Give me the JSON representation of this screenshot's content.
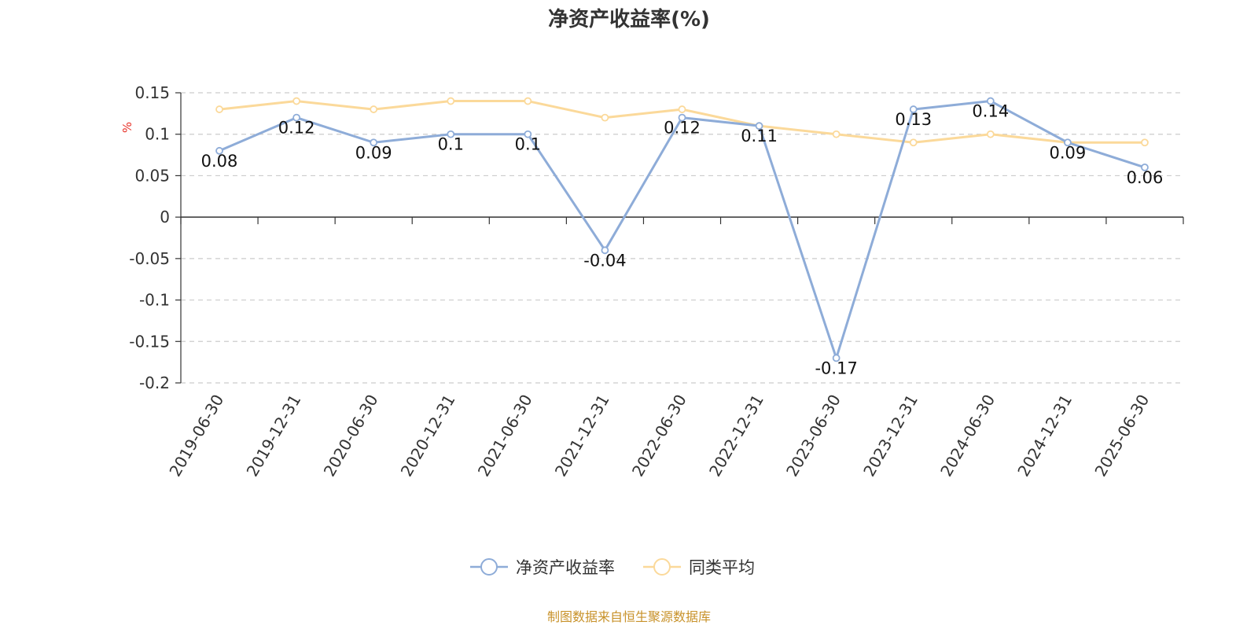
{
  "chart_data": {
    "type": "line",
    "title": "净资产收益率(%)",
    "ylabel": "%",
    "xlabel": "",
    "ylim": [
      -0.2,
      0.15
    ],
    "yticks": [
      0.15,
      0.1,
      0.05,
      0,
      -0.05,
      -0.1,
      -0.15,
      -0.2
    ],
    "ytick_labels": [
      "0.15",
      "0.1",
      "0.05",
      "0",
      "-0.05",
      "-0.1",
      "-0.15",
      "-0.2"
    ],
    "grid": true,
    "legend_position": "bottom",
    "categories": [
      "2019-06-30",
      "2019-12-31",
      "2020-06-30",
      "2020-12-31",
      "2021-06-30",
      "2021-12-31",
      "2022-06-30",
      "2022-12-31",
      "2023-06-30",
      "2023-12-31",
      "2024-06-30",
      "2024-12-31",
      "2025-06-30"
    ],
    "series": [
      {
        "name": "净资产收益率",
        "color": "#8eacd8",
        "values": [
          0.08,
          0.12,
          0.09,
          0.1,
          0.1,
          -0.04,
          0.12,
          0.11,
          -0.17,
          0.13,
          0.14,
          0.09,
          0.06
        ],
        "labels": [
          "0.08",
          "0.12",
          "0.09",
          "0.1",
          "0.1",
          "-0.04",
          "0.12",
          "0.11",
          "-0.17",
          "0.13",
          "0.14",
          "0.09",
          "0.06"
        ]
      },
      {
        "name": "同类平均",
        "color": "#fbd99a",
        "values": [
          0.13,
          0.14,
          0.13,
          0.14,
          0.14,
          0.12,
          0.13,
          0.11,
          0.1,
          0.09,
          0.1,
          0.09,
          0.09
        ]
      }
    ]
  },
  "footer": "制图数据来自恒生聚源数据库"
}
